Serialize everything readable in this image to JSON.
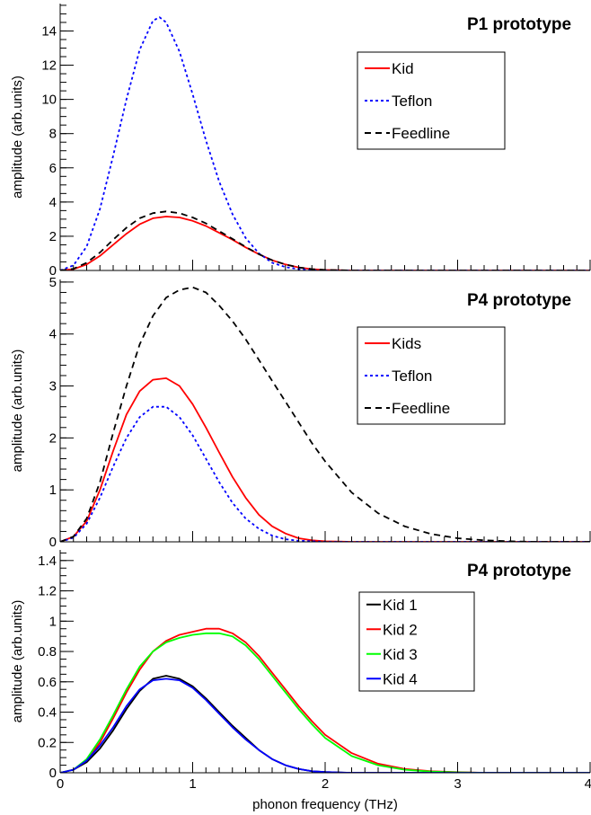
{
  "chart_data": [
    {
      "type": "line",
      "title": "P1 prototype",
      "xlabel": "",
      "ylabel": "amplitude (arb.units)",
      "xlim": [
        0,
        4
      ],
      "ylim": [
        0,
        15.6
      ],
      "x_ticks": [],
      "y_ticks": [
        0,
        2,
        4,
        6,
        8,
        10,
        12,
        14
      ],
      "y_minor_step": 0.5,
      "legend_position": "upper-right",
      "series": [
        {
          "name": "Kid",
          "color": "#ff0000",
          "dash": "solid",
          "x": [
            0,
            0.1,
            0.2,
            0.3,
            0.4,
            0.5,
            0.6,
            0.7,
            0.8,
            0.9,
            1.0,
            1.1,
            1.2,
            1.3,
            1.4,
            1.5,
            1.6,
            1.7,
            1.8,
            1.9,
            2.0,
            2.2,
            2.5,
            3.0,
            4.0
          ],
          "y": [
            0,
            0.08,
            0.35,
            0.85,
            1.5,
            2.15,
            2.7,
            3.05,
            3.15,
            3.1,
            2.9,
            2.6,
            2.2,
            1.8,
            1.35,
            0.95,
            0.6,
            0.35,
            0.18,
            0.08,
            0.03,
            0,
            0,
            0,
            0
          ]
        },
        {
          "name": "Teflon",
          "color": "#0000ff",
          "dash": "dotted",
          "x": [
            0,
            0.1,
            0.2,
            0.3,
            0.4,
            0.5,
            0.6,
            0.7,
            0.75,
            0.8,
            0.9,
            1.0,
            1.1,
            1.2,
            1.3,
            1.4,
            1.5,
            1.6,
            1.7,
            1.8,
            1.9,
            2.0,
            2.2,
            2.5,
            3.0,
            4.0
          ],
          "y": [
            0,
            0.3,
            1.4,
            3.6,
            6.7,
            10.0,
            12.9,
            14.6,
            14.8,
            14.5,
            12.8,
            10.3,
            7.6,
            5.2,
            3.3,
            1.9,
            1.0,
            0.45,
            0.2,
            0.08,
            0.02,
            0,
            0,
            0,
            0,
            0
          ]
        },
        {
          "name": "Feedline",
          "color": "#000000",
          "dash": "dashed",
          "x": [
            0,
            0.1,
            0.2,
            0.3,
            0.4,
            0.5,
            0.6,
            0.7,
            0.8,
            0.9,
            1.0,
            1.1,
            1.2,
            1.3,
            1.4,
            1.5,
            1.6,
            1.7,
            1.8,
            1.9,
            2.0,
            2.2,
            2.5,
            3.0,
            4.0
          ],
          "y": [
            0,
            0.1,
            0.45,
            1.05,
            1.8,
            2.5,
            3.05,
            3.35,
            3.45,
            3.35,
            3.1,
            2.75,
            2.3,
            1.85,
            1.38,
            0.95,
            0.6,
            0.35,
            0.18,
            0.08,
            0.03,
            0,
            0,
            0,
            0
          ]
        }
      ]
    },
    {
      "type": "line",
      "title": "P4 prototype",
      "xlabel": "",
      "ylabel": "amplitude (arb.units)",
      "xlim": [
        0,
        4
      ],
      "ylim": [
        0,
        5.05
      ],
      "x_ticks": [],
      "y_ticks": [
        0,
        1,
        2,
        3,
        4,
        5
      ],
      "y_minor_step": 0.2,
      "legend_position": "upper-right",
      "series": [
        {
          "name": "Kids",
          "color": "#ff0000",
          "dash": "solid",
          "x": [
            0,
            0.1,
            0.2,
            0.3,
            0.4,
            0.5,
            0.6,
            0.7,
            0.8,
            0.9,
            1.0,
            1.1,
            1.2,
            1.3,
            1.4,
            1.5,
            1.6,
            1.7,
            1.8,
            1.9,
            2.0,
            2.2,
            2.5,
            3.0,
            4.0
          ],
          "y": [
            0,
            0.1,
            0.4,
            1.0,
            1.75,
            2.45,
            2.9,
            3.12,
            3.15,
            3.0,
            2.65,
            2.2,
            1.72,
            1.25,
            0.85,
            0.52,
            0.3,
            0.16,
            0.07,
            0.03,
            0.01,
            0,
            0,
            0,
            0
          ]
        },
        {
          "name": "Teflon",
          "color": "#0000ff",
          "dash": "dotted",
          "x": [
            0,
            0.1,
            0.2,
            0.3,
            0.4,
            0.5,
            0.6,
            0.7,
            0.8,
            0.9,
            1.0,
            1.1,
            1.2,
            1.3,
            1.4,
            1.5,
            1.6,
            1.7,
            1.8,
            1.9,
            2.0,
            2.2,
            2.5,
            3.0,
            4.0
          ],
          "y": [
            0,
            0.08,
            0.35,
            0.85,
            1.45,
            2.0,
            2.4,
            2.6,
            2.6,
            2.4,
            2.05,
            1.6,
            1.15,
            0.75,
            0.45,
            0.25,
            0.12,
            0.05,
            0.02,
            0.01,
            0,
            0,
            0,
            0,
            0
          ]
        },
        {
          "name": "Feedline",
          "color": "#000000",
          "dash": "dashed",
          "x": [
            0,
            0.1,
            0.2,
            0.3,
            0.4,
            0.5,
            0.6,
            0.7,
            0.8,
            0.9,
            1.0,
            1.1,
            1.2,
            1.3,
            1.4,
            1.5,
            1.6,
            1.7,
            1.8,
            1.9,
            2.0,
            2.2,
            2.4,
            2.6,
            2.8,
            3.0,
            3.2,
            3.4,
            3.6,
            4.0
          ],
          "y": [
            0,
            0.1,
            0.45,
            1.15,
            2.1,
            3.0,
            3.8,
            4.35,
            4.7,
            4.85,
            4.9,
            4.8,
            4.55,
            4.25,
            3.9,
            3.5,
            3.1,
            2.7,
            2.3,
            1.9,
            1.55,
            0.95,
            0.55,
            0.3,
            0.15,
            0.07,
            0.03,
            0.01,
            0,
            0
          ]
        }
      ]
    },
    {
      "type": "line",
      "title": "P4 prototype",
      "xlabel": "phonon frequency (THz)",
      "ylabel": "amplitude (arb.units)",
      "xlim": [
        0,
        4
      ],
      "ylim": [
        0,
        1.47
      ],
      "x_ticks": [
        0,
        1,
        2,
        3,
        4
      ],
      "y_ticks": [
        0,
        0.2,
        0.4,
        0.6,
        0.8,
        1,
        1.2,
        1.4
      ],
      "y_minor_step": 0.05,
      "legend_position": "upper-right",
      "series": [
        {
          "name": "Kid 1",
          "color": "#000000",
          "dash": "solid",
          "x": [
            0,
            0.1,
            0.2,
            0.3,
            0.4,
            0.5,
            0.6,
            0.7,
            0.8,
            0.9,
            1.0,
            1.1,
            1.2,
            1.3,
            1.4,
            1.5,
            1.6,
            1.7,
            1.8,
            1.9,
            2.0,
            2.2,
            2.5,
            3.0,
            4.0
          ],
          "y": [
            0,
            0.02,
            0.07,
            0.16,
            0.28,
            0.42,
            0.54,
            0.62,
            0.64,
            0.62,
            0.57,
            0.49,
            0.4,
            0.31,
            0.23,
            0.15,
            0.09,
            0.05,
            0.025,
            0.01,
            0.005,
            0,
            0,
            0,
            0
          ]
        },
        {
          "name": "Kid 2",
          "color": "#ff0000",
          "dash": "solid",
          "x": [
            0,
            0.1,
            0.2,
            0.3,
            0.4,
            0.5,
            0.6,
            0.7,
            0.8,
            0.9,
            1.0,
            1.1,
            1.2,
            1.3,
            1.4,
            1.5,
            1.6,
            1.7,
            1.8,
            1.9,
            2.0,
            2.2,
            2.4,
            2.6,
            2.8,
            3.0,
            3.2,
            4.0
          ],
          "y": [
            0,
            0.02,
            0.08,
            0.2,
            0.36,
            0.53,
            0.68,
            0.8,
            0.87,
            0.91,
            0.93,
            0.95,
            0.95,
            0.92,
            0.86,
            0.77,
            0.66,
            0.55,
            0.44,
            0.34,
            0.25,
            0.13,
            0.06,
            0.025,
            0.01,
            0.004,
            0,
            0
          ]
        },
        {
          "name": "Kid 3",
          "color": "#00ff00",
          "dash": "solid",
          "x": [
            0,
            0.1,
            0.2,
            0.3,
            0.4,
            0.5,
            0.6,
            0.7,
            0.8,
            0.9,
            1.0,
            1.1,
            1.2,
            1.3,
            1.4,
            1.5,
            1.6,
            1.7,
            1.8,
            1.9,
            2.0,
            2.2,
            2.4,
            2.6,
            2.8,
            3.0,
            3.2,
            4.0
          ],
          "y": [
            0,
            0.02,
            0.09,
            0.22,
            0.38,
            0.55,
            0.7,
            0.8,
            0.86,
            0.89,
            0.91,
            0.92,
            0.92,
            0.9,
            0.84,
            0.75,
            0.64,
            0.53,
            0.42,
            0.32,
            0.23,
            0.11,
            0.05,
            0.02,
            0.008,
            0.003,
            0,
            0
          ]
        },
        {
          "name": "Kid 4",
          "color": "#0000ff",
          "dash": "solid",
          "x": [
            0,
            0.1,
            0.2,
            0.3,
            0.4,
            0.5,
            0.6,
            0.7,
            0.8,
            0.9,
            1.0,
            1.1,
            1.2,
            1.3,
            1.4,
            1.5,
            1.6,
            1.7,
            1.8,
            1.9,
            2.0,
            2.2,
            2.5,
            3.0,
            4.0
          ],
          "y": [
            0,
            0.02,
            0.08,
            0.18,
            0.3,
            0.44,
            0.55,
            0.61,
            0.62,
            0.61,
            0.56,
            0.48,
            0.39,
            0.3,
            0.22,
            0.15,
            0.09,
            0.05,
            0.025,
            0.01,
            0.005,
            0,
            0,
            0,
            0
          ]
        }
      ]
    }
  ]
}
